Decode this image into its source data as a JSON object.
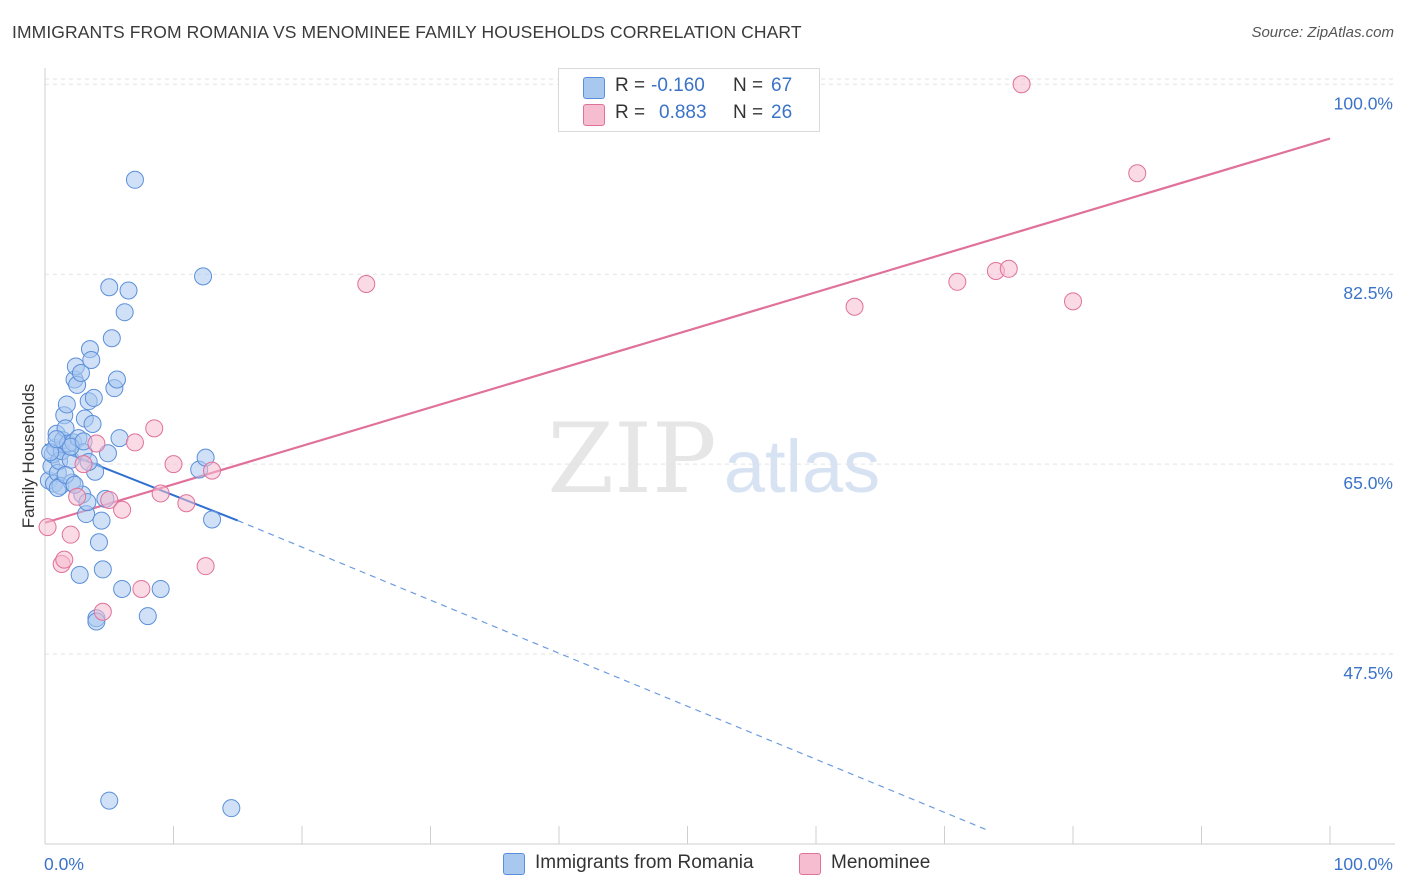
{
  "title": "IMMIGRANTS FROM ROMANIA VS MENOMINEE FAMILY HOUSEHOLDS CORRELATION CHART",
  "source": "Source: ZipAtlas.com",
  "watermark": {
    "zip": "ZIP",
    "atlas": "atlas"
  },
  "legend": {
    "series1": {
      "r_label": "R =",
      "r_value": "-0.160",
      "n_label": "N =",
      "n_value": "67"
    },
    "series2": {
      "r_label": "R =",
      "r_value": "0.883",
      "n_label": "N =",
      "n_value": "26"
    }
  },
  "bottom_legend": {
    "series1": "Immigrants from Romania",
    "series2": "Menominee"
  },
  "colors": {
    "blue": "#5b8fd9",
    "blue_fill": "#a9c8f0",
    "pink": "#e0719a",
    "pink_fill": "#f6bcd0",
    "axis_text": "#3a73c8"
  },
  "chart_data": {
    "type": "scatter",
    "title": "IMMIGRANTS FROM ROMANIA VS MENOMINEE FAMILY HOUSEHOLDS CORRELATION CHART",
    "xlabel": "",
    "ylabel": "Family Households",
    "xlim": [
      0,
      100
    ],
    "ylim": [
      30,
      101.5
    ],
    "x_tick_labels": [
      "0.0%",
      "100.0%"
    ],
    "y_ticks": [
      47.5,
      65.0,
      82.5,
      100.0
    ],
    "y_tick_labels": [
      "47.5%",
      "65.0%",
      "82.5%",
      "100.0%"
    ],
    "grid": true,
    "series": [
      {
        "name": "Immigrants from Romania",
        "r": -0.16,
        "n": 67,
        "trend": {
          "x0": 0,
          "y0": 66.8,
          "x1": 15,
          "y1": 59.8,
          "dash_to_x": 73.5,
          "dash_to_y": 31.2
        },
        "points": [
          [
            0.3,
            63.5
          ],
          [
            0.5,
            64.8
          ],
          [
            0.6,
            65.9
          ],
          [
            0.7,
            63.2
          ],
          [
            0.8,
            66.5
          ],
          [
            0.9,
            67.8
          ],
          [
            1.0,
            64.2
          ],
          [
            1.1,
            65.3
          ],
          [
            1.2,
            63.0
          ],
          [
            1.3,
            66.2
          ],
          [
            1.4,
            67.2
          ],
          [
            1.5,
            69.5
          ],
          [
            1.6,
            68.3
          ],
          [
            1.7,
            70.5
          ],
          [
            1.8,
            66.9
          ],
          [
            2.0,
            65.4
          ],
          [
            2.1,
            63.3
          ],
          [
            2.2,
            67.0
          ],
          [
            2.3,
            72.8
          ],
          [
            2.4,
            74.0
          ],
          [
            2.5,
            72.3
          ],
          [
            2.6,
            67.4
          ],
          [
            2.7,
            54.8
          ],
          [
            2.8,
            73.4
          ],
          [
            2.9,
            62.2
          ],
          [
            3.0,
            66.1
          ],
          [
            3.1,
            69.2
          ],
          [
            3.2,
            60.4
          ],
          [
            3.3,
            61.5
          ],
          [
            3.4,
            70.8
          ],
          [
            3.5,
            75.6
          ],
          [
            3.6,
            74.6
          ],
          [
            3.7,
            68.7
          ],
          [
            3.8,
            71.1
          ],
          [
            3.9,
            64.3
          ],
          [
            4.0,
            50.8
          ],
          [
            4.2,
            57.8
          ],
          [
            4.4,
            59.8
          ],
          [
            4.5,
            55.3
          ],
          [
            4.7,
            61.8
          ],
          [
            4.9,
            66.0
          ],
          [
            5.0,
            81.3
          ],
          [
            5.2,
            76.6
          ],
          [
            5.4,
            72.0
          ],
          [
            5.6,
            72.8
          ],
          [
            5.8,
            67.4
          ],
          [
            6.0,
            53.5
          ],
          [
            6.2,
            79.0
          ],
          [
            6.5,
            81.0
          ],
          [
            7.0,
            91.2
          ],
          [
            8.0,
            51.0
          ],
          [
            12.0,
            64.5
          ],
          [
            12.5,
            65.6
          ],
          [
            12.3,
            82.3
          ],
          [
            13.0,
            59.9
          ],
          [
            9.0,
            53.5
          ],
          [
            1.0,
            62.8
          ],
          [
            2.0,
            66.6
          ],
          [
            3.0,
            67.1
          ],
          [
            4.0,
            50.5
          ],
          [
            5.0,
            34.0
          ],
          [
            14.5,
            33.3
          ],
          [
            0.4,
            66.1
          ],
          [
            0.9,
            67.3
          ],
          [
            1.6,
            64.0
          ],
          [
            2.3,
            63.1
          ],
          [
            3.4,
            65.2
          ]
        ]
      },
      {
        "name": "Menominee",
        "r": 0.883,
        "n": 26,
        "trend": {
          "x0": 0,
          "y0": 59.6,
          "x1": 100,
          "y1": 95.0
        },
        "points": [
          [
            0.2,
            59.2
          ],
          [
            1.3,
            55.8
          ],
          [
            1.5,
            56.2
          ],
          [
            2.0,
            58.5
          ],
          [
            2.5,
            62.0
          ],
          [
            3.0,
            65.0
          ],
          [
            4.0,
            66.9
          ],
          [
            4.5,
            51.4
          ],
          [
            5.0,
            61.7
          ],
          [
            6.0,
            60.8
          ],
          [
            7.0,
            67.0
          ],
          [
            7.5,
            53.5
          ],
          [
            8.5,
            68.3
          ],
          [
            9.0,
            62.3
          ],
          [
            10.0,
            65.0
          ],
          [
            11.0,
            61.4
          ],
          [
            12.5,
            55.6
          ],
          [
            13.0,
            64.4
          ],
          [
            25.0,
            81.6
          ],
          [
            63.0,
            79.5
          ],
          [
            71.0,
            81.8
          ],
          [
            74.0,
            82.8
          ],
          [
            75.0,
            83.0
          ],
          [
            76.0,
            100.0
          ],
          [
            80.0,
            80.0
          ],
          [
            85.0,
            91.8
          ]
        ]
      }
    ]
  }
}
